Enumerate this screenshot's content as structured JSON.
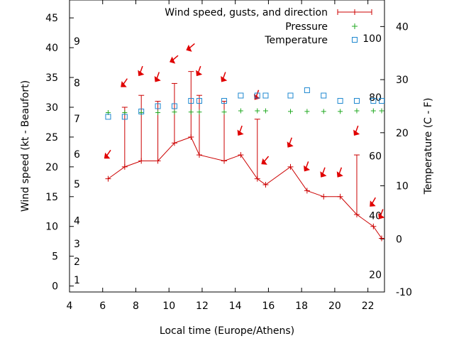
{
  "chart_data": {
    "type": "line",
    "title": "",
    "xlabel": "Local time (Europe/Athens)",
    "ylabel_left": "Wind speed (kt - Beaufort)",
    "ylabel_right": "Temperature (C - F)",
    "xlim": [
      4,
      23
    ],
    "ylim_left": [
      -1,
      48
    ],
    "ylim_right": [
      -10,
      45
    ],
    "x_ticks": [
      4,
      6,
      8,
      10,
      12,
      14,
      16,
      18,
      20,
      22
    ],
    "y_left_ticks": [
      0,
      5,
      10,
      15,
      20,
      25,
      30,
      35,
      40,
      45
    ],
    "y_right_ticks": [
      -10,
      0,
      10,
      20,
      30,
      40
    ],
    "beaufort_labels": [
      {
        "label": "1",
        "y": 1
      },
      {
        "label": "2",
        "y": 4.1
      },
      {
        "label": "3",
        "y": 7.1
      },
      {
        "label": "4",
        "y": 11
      },
      {
        "label": "5",
        "y": 17.1
      },
      {
        "label": "6",
        "y": 22.1
      },
      {
        "label": "7",
        "y": 28.1
      },
      {
        "label": "8",
        "y": 34.1
      },
      {
        "label": "9",
        "y": 41.1
      }
    ],
    "fahrenheit_labels": [
      {
        "label": "20",
        "temp": -6.7
      },
      {
        "label": "40",
        "temp": 4.4
      },
      {
        "label": "60",
        "temp": 15.6
      },
      {
        "label": "80",
        "temp": 26.7
      },
      {
        "label": "100",
        "temp": 37.8
      }
    ],
    "legend": {
      "position": "top-right",
      "entries": [
        "Wind speed, gusts, and direction",
        "Pressure",
        "Temperature"
      ]
    },
    "colors": {
      "wind": "#cc0000",
      "pressure": "#22aa22",
      "temperature": "#1e88d0",
      "arrow": "#e00000"
    },
    "series": [
      {
        "name": "Wind speed, gusts, and direction",
        "x": [
          6.33,
          7.33,
          8.33,
          9.33,
          10.33,
          11.33,
          11.83,
          13.33,
          14.33,
          15.33,
          15.83,
          17.33,
          18.33,
          19.33,
          20.33,
          21.33,
          22.33,
          22.83
        ],
        "y": [
          18,
          20,
          21,
          21,
          24,
          25,
          22,
          21,
          22,
          18,
          17,
          20,
          16,
          15,
          15,
          12,
          10,
          8
        ],
        "gusts": [
          null,
          30,
          32,
          31,
          34,
          36,
          32,
          31,
          null,
          28,
          null,
          null,
          null,
          null,
          null,
          22,
          null,
          null
        ],
        "direction_deg": [
          315,
          315,
          300,
          300,
          330,
          330,
          300,
          300,
          300,
          300,
          320,
          300,
          300,
          300,
          300,
          300,
          310,
          300
        ]
      },
      {
        "name": "Pressure",
        "x": [
          6.33,
          7.33,
          8.33,
          9.33,
          10.33,
          11.33,
          11.83,
          13.33,
          14.33,
          15.33,
          15.83,
          17.33,
          18.33,
          19.33,
          20.33,
          21.33,
          22.33,
          22.83
        ],
        "y": [
          29.1,
          29.1,
          29.1,
          29.1,
          29.2,
          29.2,
          29.2,
          29.2,
          29.4,
          29.4,
          29.4,
          29.3,
          29.3,
          29.3,
          29.3,
          29.4,
          29.4,
          29.4
        ]
      },
      {
        "name": "Temperature",
        "axis": "right",
        "x": [
          6.33,
          7.33,
          8.33,
          9.33,
          10.33,
          11.33,
          11.83,
          13.33,
          14.33,
          15.33,
          15.83,
          17.33,
          18.33,
          19.33,
          20.33,
          21.33,
          22.33,
          22.83
        ],
        "y": [
          23,
          23,
          24,
          25,
          25,
          26,
          26,
          26,
          27,
          27,
          27,
          27,
          28,
          27,
          26,
          26,
          26,
          26
        ]
      }
    ]
  }
}
